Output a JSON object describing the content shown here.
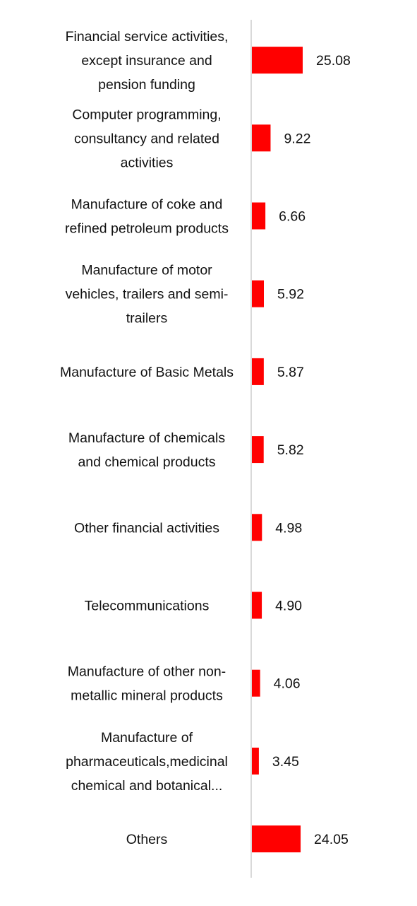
{
  "chart_data": {
    "type": "bar",
    "orientation": "horizontal",
    "categories": [
      [
        "Financial service activities,",
        "except insurance and",
        "pension funding"
      ],
      [
        "Computer programming,",
        "consultancy and related",
        "activities"
      ],
      [
        "Manufacture of coke and",
        "refined petroleum products"
      ],
      [
        "Manufacture of motor",
        "vehicles, trailers and semi-",
        "trailers"
      ],
      [
        "Manufacture of Basic Metals"
      ],
      [
        "Manufacture of chemicals",
        "and chemical products"
      ],
      [
        "Other financial activities"
      ],
      [
        "Telecommunications"
      ],
      [
        "Manufacture of other non-",
        "metallic mineral products"
      ],
      [
        "Manufacture of",
        "pharmaceuticals,medicinal",
        "chemical and botanical..."
      ],
      [
        "Others"
      ]
    ],
    "values": [
      25.08,
      9.22,
      6.66,
      5.92,
      5.87,
      5.82,
      4.98,
      4.9,
      4.06,
      3.45,
      24.05
    ],
    "value_labels": [
      "25.08",
      "9.22",
      "6.66",
      "5.92",
      "5.87",
      "5.82",
      "4.98",
      "4.90",
      "4.06",
      "3.45",
      "24.05"
    ],
    "xlim": [
      0,
      100
    ],
    "grid": false,
    "legend": "none",
    "colors": {
      "bar": "#ff0000",
      "axis": "#d9d9d9",
      "text": "#111111"
    }
  }
}
